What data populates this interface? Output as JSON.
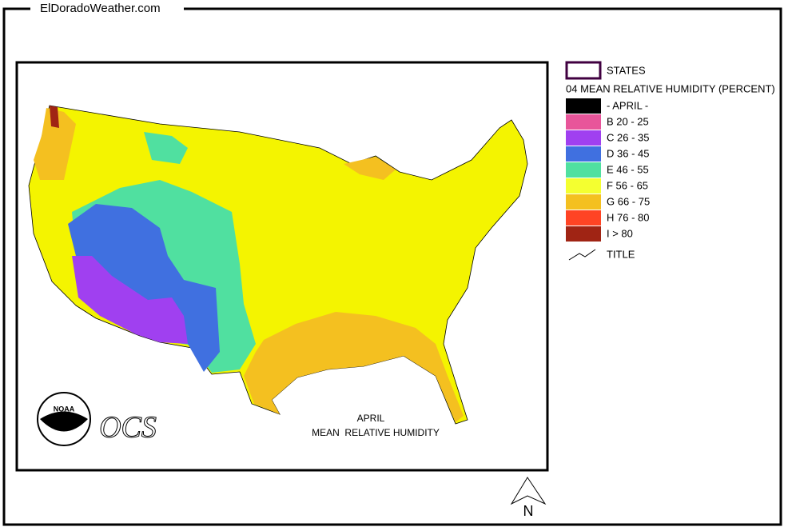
{
  "header": {
    "site": "ElDoradoWeather.com"
  },
  "map": {
    "title_line1": "APRIL",
    "title_line2": "MEAN  RELATIVE HUMIDITY",
    "logo_noaa": "NOAA",
    "logo_ocs": "OCS",
    "north": "N"
  },
  "legend": {
    "states": "STATES",
    "heading": "04 MEAN RELATIVE HUMIDITY (PERCENT)",
    "items": [
      {
        "label": "- APRIL -",
        "color": "#000000"
      },
      {
        "label": "B 20 - 25",
        "color": "#e8559a"
      },
      {
        "label": "C 26 - 35",
        "color": "#a040f0"
      },
      {
        "label": "D 36 - 45",
        "color": "#4070e0"
      },
      {
        "label": "E 46 - 55",
        "color": "#50e0a0"
      },
      {
        "label": "F 56 - 65",
        "color": "#f4ff30"
      },
      {
        "label": "G 66 - 75",
        "color": "#f4c020"
      },
      {
        "label": "H 76 - 80",
        "color": "#ff4424"
      },
      {
        "label": "I > 80",
        "color": "#a02414"
      }
    ],
    "title_item": "TITLE"
  }
}
